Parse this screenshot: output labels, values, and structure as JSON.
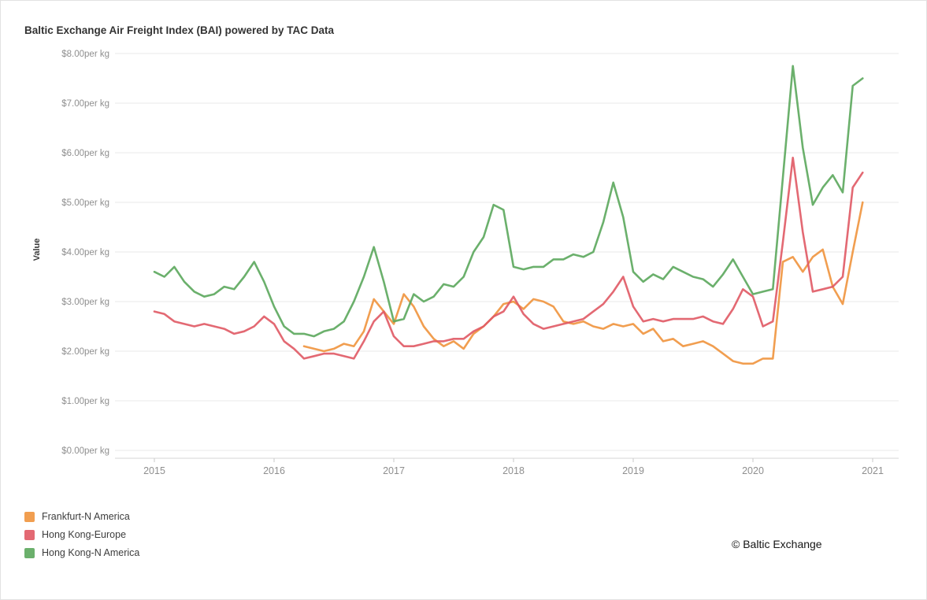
{
  "header": {
    "title": "Baltic Exchange Air Freight Index (BAI) powered by TAC Data"
  },
  "footer": {
    "copyright": "© Baltic Exchange"
  },
  "chart_data": {
    "type": "line",
    "title": "Baltic Exchange Air Freight Index (BAI) powered by TAC Data",
    "ylabel": "Value",
    "ylim": [
      0,
      8
    ],
    "grid": "horizontal",
    "legend_position": "bottom-left",
    "x_interval": "monthly",
    "x_start": "2015-01",
    "x_ticks": [
      "2015",
      "2016",
      "2017",
      "2018",
      "2019",
      "2020",
      "2021"
    ],
    "y_ticks": [
      {
        "value": 8,
        "label": "$8.00per kg"
      },
      {
        "value": 7,
        "label": "$7.00per kg"
      },
      {
        "value": 6,
        "label": "$6.00per kg"
      },
      {
        "value": 5,
        "label": "$5.00per kg"
      },
      {
        "value": 4,
        "label": "$4.00per kg"
      },
      {
        "value": 3,
        "label": "$3.00per kg"
      },
      {
        "value": 2,
        "label": "$2.00per kg"
      },
      {
        "value": 1,
        "label": "$1.00per kg"
      },
      {
        "value": 0,
        "label": "$0.00per kg"
      }
    ],
    "series": [
      {
        "name": "Frankfurt-N America",
        "color": "#f0943d",
        "start": "2016-04",
        "start_month_index": 15,
        "values": [
          2.1,
          2.05,
          2.0,
          2.05,
          2.15,
          2.1,
          2.4,
          3.05,
          2.8,
          2.55,
          3.15,
          2.9,
          2.5,
          2.25,
          2.1,
          2.2,
          2.05,
          2.35,
          2.5,
          2.7,
          2.95,
          3.0,
          2.85,
          3.05,
          3.0,
          2.9,
          2.6,
          2.55,
          2.6,
          2.5,
          2.45,
          2.55,
          2.5,
          2.55,
          2.35,
          2.45,
          2.2,
          2.25,
          2.1,
          2.15,
          2.2,
          2.1,
          1.95,
          1.8,
          1.75,
          1.75,
          1.85,
          1.85,
          3.8,
          3.9,
          3.6,
          3.9,
          4.05,
          3.3,
          2.95,
          4.0,
          5.0
        ]
      },
      {
        "name": "Hong Kong-Europe",
        "color": "#e05964",
        "start": "2015-01",
        "start_month_index": 0,
        "values": [
          2.8,
          2.75,
          2.6,
          2.55,
          2.5,
          2.55,
          2.5,
          2.45,
          2.35,
          2.4,
          2.5,
          2.7,
          2.55,
          2.2,
          2.05,
          1.85,
          1.9,
          1.95,
          1.95,
          1.9,
          1.85,
          2.2,
          2.6,
          2.8,
          2.3,
          2.1,
          2.1,
          2.15,
          2.2,
          2.2,
          2.25,
          2.25,
          2.4,
          2.5,
          2.7,
          2.8,
          3.1,
          2.75,
          2.55,
          2.45,
          2.5,
          2.55,
          2.6,
          2.65,
          2.8,
          2.95,
          3.2,
          3.5,
          2.9,
          2.6,
          2.65,
          2.6,
          2.65,
          2.65,
          2.65,
          2.7,
          2.6,
          2.55,
          2.85,
          3.25,
          3.1,
          2.5,
          2.6,
          4.2,
          5.9,
          4.4,
          3.2,
          3.25,
          3.3,
          3.5,
          5.3,
          5.6
        ]
      },
      {
        "name": "Hong Kong-N America",
        "color": "#5ba75c",
        "start": "2015-01",
        "start_month_index": 0,
        "values": [
          3.6,
          3.5,
          3.7,
          3.4,
          3.2,
          3.1,
          3.15,
          3.3,
          3.25,
          3.5,
          3.8,
          3.4,
          2.9,
          2.5,
          2.35,
          2.35,
          2.3,
          2.4,
          2.45,
          2.6,
          3.0,
          3.5,
          4.1,
          3.4,
          2.6,
          2.65,
          3.15,
          3.0,
          3.1,
          3.35,
          3.3,
          3.5,
          4.0,
          4.3,
          4.95,
          4.85,
          3.7,
          3.65,
          3.7,
          3.7,
          3.85,
          3.85,
          3.95,
          3.9,
          4.0,
          4.6,
          5.4,
          4.7,
          3.6,
          3.4,
          3.55,
          3.45,
          3.7,
          3.6,
          3.5,
          3.45,
          3.3,
          3.55,
          3.85,
          3.5,
          3.15,
          3.2,
          3.25,
          5.5,
          7.75,
          6.1,
          4.95,
          5.3,
          5.55,
          5.2,
          7.35,
          7.5
        ]
      }
    ]
  }
}
